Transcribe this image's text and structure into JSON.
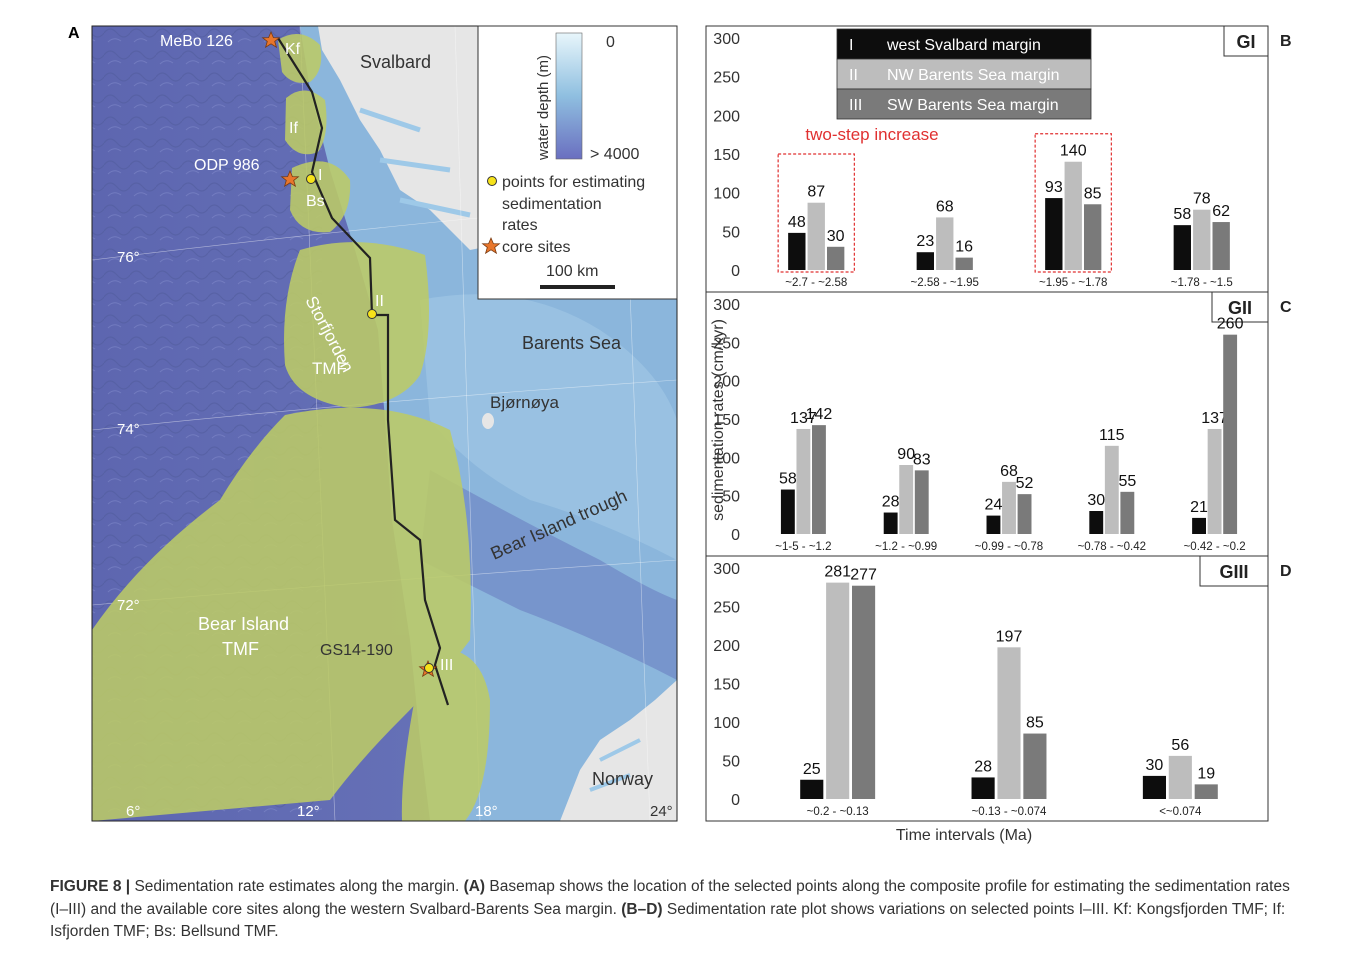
{
  "map": {
    "panel_label": "A",
    "places": {
      "svalbard": "Svalbard",
      "barents_sea": "Barents Sea",
      "bjornoya": "Bjørnøya",
      "bear_island_trough": "Bear Island trough",
      "norway": "Norway",
      "storfjorden_tmf": "Storfjorden",
      "storfjorden_tmf2": "TMF",
      "bear_island_tmf": "Bear Island",
      "bear_island_tmf2": "TMF",
      "kf": "Kf",
      "if": "If",
      "bs": "Bs"
    },
    "sites": {
      "mebo": "MeBo 126",
      "odp": "ODP 986",
      "gs14": "GS14-190"
    },
    "points": {
      "p1": "I",
      "p2": "II",
      "p3": "III"
    },
    "lat_labels": [
      "76°",
      "74°",
      "72°"
    ],
    "lon_labels": [
      "6°",
      "12°",
      "18°",
      "24°"
    ],
    "legend": {
      "depth_title": "water depth (m)",
      "depth_top": "0",
      "depth_bottom": "> 4000",
      "points_label_1": "points for estimating",
      "points_label_2": "sedimentation",
      "points_label_3": "rates",
      "core_label": "core sites",
      "scale_label": "100 km"
    },
    "colors": {
      "ocean_deep": "#6670b8",
      "shelf": "#8fb8dc",
      "land": "#e6e6e6",
      "fan": "#b5c86a"
    }
  },
  "chart_data": [
    {
      "type": "bar",
      "panel": "B",
      "group_label": "GI",
      "categories": [
        "~2.7 - ~2.58",
        "~2.58 - ~1.95",
        "~1.95 - ~1.78",
        "~1.78 - ~1.5"
      ],
      "series": [
        {
          "name": "west Svalbard margin",
          "roman": "I",
          "color": "#0d0d0d",
          "values": [
            48,
            23,
            93,
            58
          ]
        },
        {
          "name": "NW Barents Sea margin",
          "roman": "II",
          "color": "#bdbdbd",
          "values": [
            87,
            68,
            140,
            78
          ]
        },
        {
          "name": "SW Barents Sea margin",
          "roman": "III",
          "color": "#7a7a7a",
          "values": [
            30,
            16,
            85,
            62
          ]
        }
      ],
      "ylim": [
        0,
        300
      ],
      "yticks": [
        0,
        50,
        100,
        150,
        200,
        250,
        300
      ],
      "annotation": "two-step increase",
      "highlight_groups": [
        0,
        2
      ]
    },
    {
      "type": "bar",
      "panel": "C",
      "group_label": "GII",
      "categories": [
        "~1-5 - ~1.2",
        "~1.2 - ~0.99",
        "~0.99 - ~0.78",
        "~0.78 - ~0.42",
        "~0.42 - ~0.2"
      ],
      "series": [
        {
          "color": "#0d0d0d",
          "values": [
            58,
            28,
            24,
            30,
            21
          ]
        },
        {
          "color": "#bdbdbd",
          "values": [
            137,
            90,
            68,
            115,
            137
          ]
        },
        {
          "color": "#7a7a7a",
          "values": [
            142,
            83,
            52,
            55,
            260
          ]
        }
      ],
      "ylim": [
        0,
        300
      ],
      "yticks": [
        0,
        50,
        100,
        150,
        200,
        250,
        300
      ]
    },
    {
      "type": "bar",
      "panel": "D",
      "group_label": "GIII",
      "categories": [
        "~0.2 - ~0.13",
        "~0.13 - ~0.074",
        "<~0.074"
      ],
      "series": [
        {
          "color": "#0d0d0d",
          "values": [
            25,
            28,
            30
          ]
        },
        {
          "color": "#bdbdbd",
          "values": [
            281,
            197,
            56
          ]
        },
        {
          "color": "#7a7a7a",
          "values": [
            277,
            85,
            19
          ]
        }
      ],
      "ylim": [
        0,
        300
      ],
      "yticks": [
        0,
        50,
        100,
        150,
        200,
        250,
        300
      ]
    }
  ],
  "axes": {
    "ylabel": "sedimentation rates (cm/kyr)",
    "xlabel": "Time intervals (Ma)"
  },
  "caption": {
    "label": "FIGURE 8 |",
    "text_1": " Sedimentation rate estimates along the margin. ",
    "bold_a": "(A)",
    "text_2": " Basemap shows the location of the selected points along the composite profile for estimating the sedimentation rates (I–III) and the available core sites along the western Svalbard-Barents Sea margin. ",
    "bold_bd": "(B–D)",
    "text_3": " Sedimentation rate plot shows variations on selected points I–III. Kf: Kongsfjorden TMF; If: Isfjorden TMF; Bs: Bellsund TMF."
  }
}
